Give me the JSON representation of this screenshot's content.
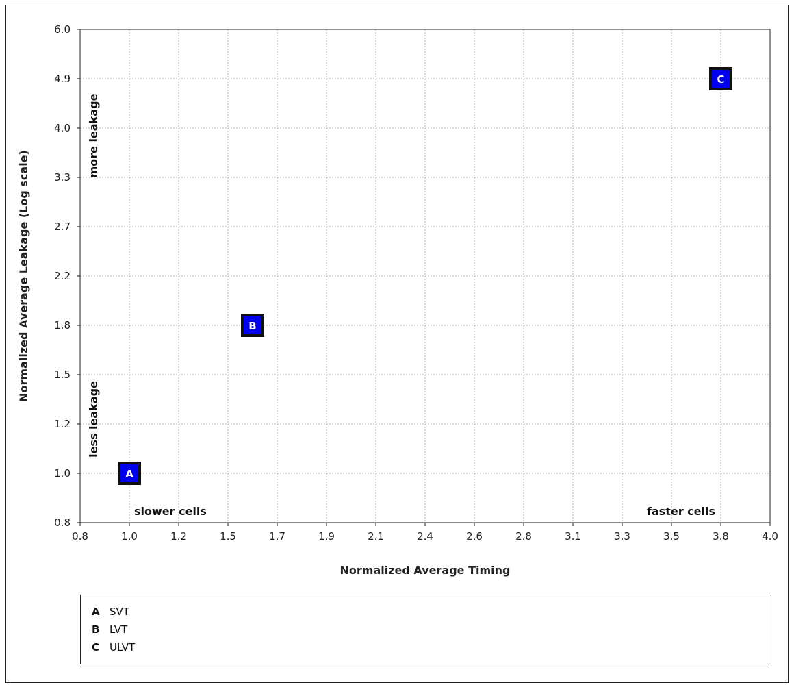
{
  "chart_data": {
    "type": "scatter",
    "xlabel": "Normalized Average Timing",
    "ylabel": "Normalized Average Leakage (Log scale)",
    "xlim": [
      0.8,
      4.0
    ],
    "ylim": [
      0.8,
      6.0
    ],
    "y_scale": "log",
    "x_ticks": [
      "0.8",
      "1.0",
      "1.2",
      "1.5",
      "1.7",
      "1.9",
      "2.1",
      "2.4",
      "2.6",
      "2.8",
      "3.1",
      "3.3",
      "3.5",
      "3.8",
      "4.0"
    ],
    "y_ticks": [
      "6.0",
      "4.9",
      "4.0",
      "3.3",
      "2.7",
      "2.2",
      "1.8",
      "1.5",
      "1.2",
      "1.0",
      "0.8"
    ],
    "grid": true,
    "points": [
      {
        "label": "A",
        "x": 1.0,
        "y": 1.0
      },
      {
        "label": "B",
        "x": 1.6,
        "y": 1.8
      },
      {
        "label": "C",
        "x": 3.8,
        "y": 4.9
      }
    ],
    "point_color": "#0000ee",
    "annotations": {
      "more_leakage": "more leakage",
      "less_leakage": "less leakage",
      "slower_cells": "slower cells",
      "faster_cells": "faster cells"
    },
    "legend": [
      {
        "key": "A",
        "label": "SVT"
      },
      {
        "key": "B",
        "label": "LVT"
      },
      {
        "key": "C",
        "label": "ULVT"
      }
    ],
    "legend_position": "bottom"
  }
}
